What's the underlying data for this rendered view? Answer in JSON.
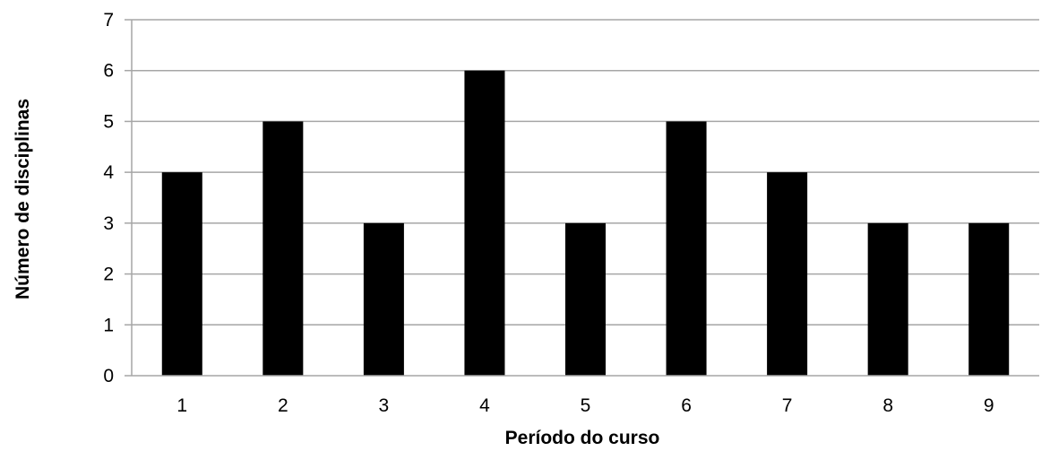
{
  "chart_data": {
    "type": "bar",
    "title": "",
    "xlabel": "Período do curso",
    "ylabel": "Número de disciplinas",
    "categories": [
      "1",
      "2",
      "3",
      "4",
      "5",
      "6",
      "7",
      "8",
      "9"
    ],
    "values": [
      4,
      5,
      3,
      6,
      3,
      5,
      4,
      3,
      3
    ],
    "ylim": [
      0,
      7
    ],
    "yticks": [
      "0",
      "1",
      "2",
      "3",
      "4",
      "5",
      "6",
      "7"
    ],
    "grid": true,
    "legend": "none",
    "colors": {
      "bar": "#000000",
      "grid": "#a6a6a6",
      "axis": "#a6a6a6",
      "text": "#000000"
    }
  }
}
